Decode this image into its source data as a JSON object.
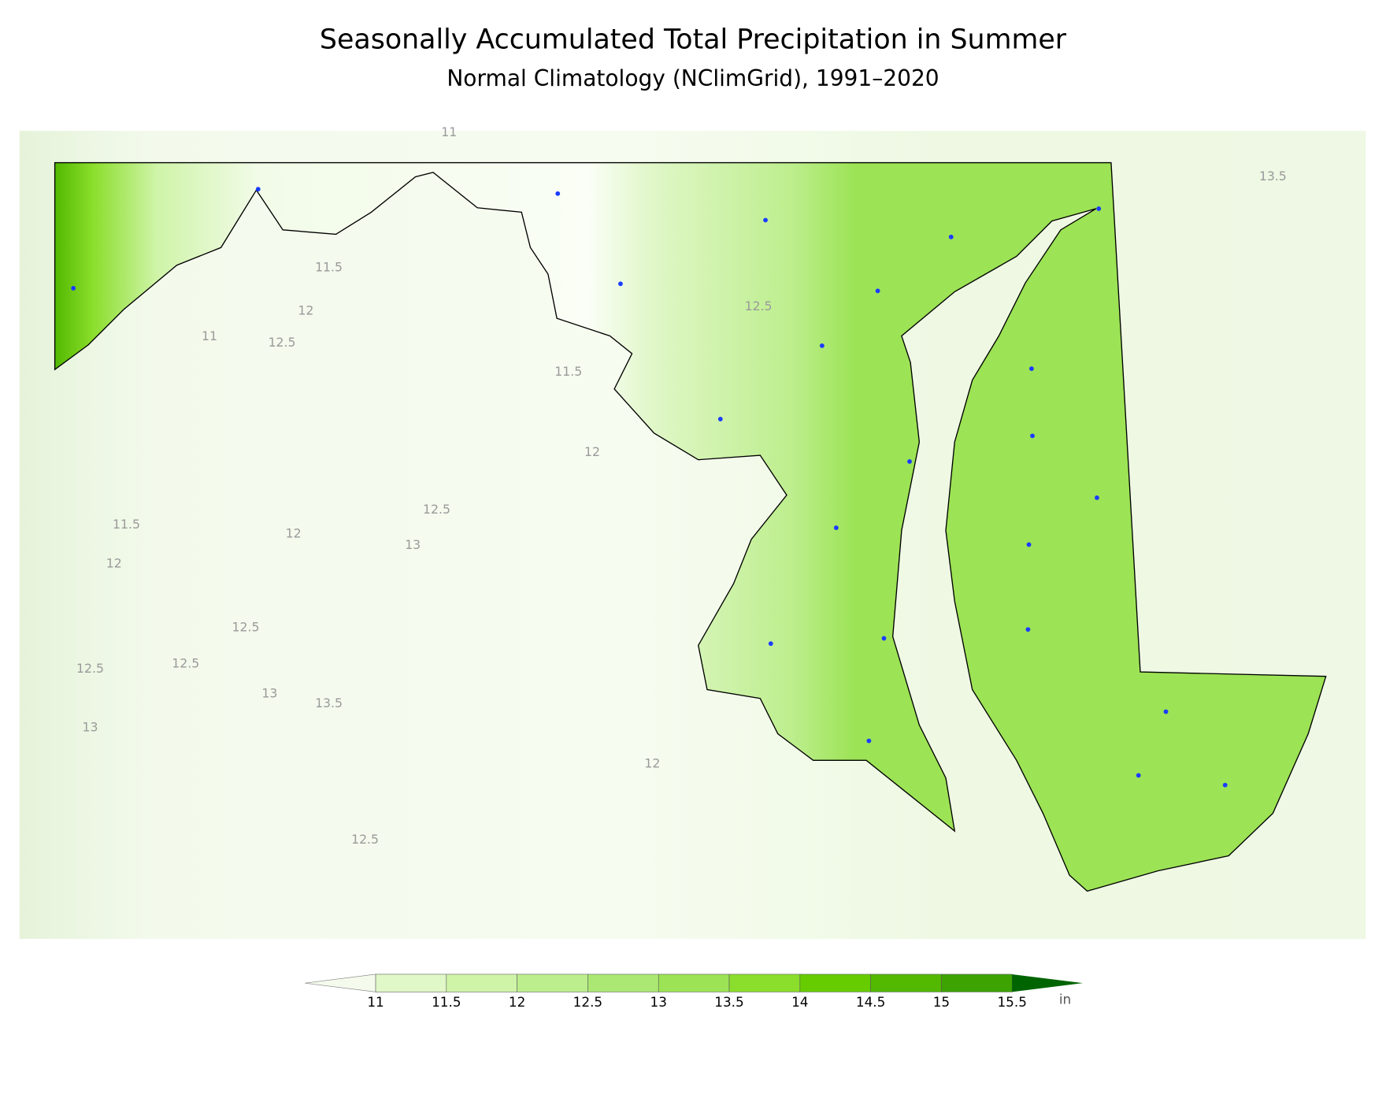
{
  "title": "Seasonally Accumulated Total Precipitation in Summer",
  "subtitle": "Normal Climatology (NClimGrid), 1991–2020",
  "contour_labels": [
    11,
    13.5,
    11.5,
    12,
    12.5,
    11,
    12.5,
    11.5,
    12,
    12.5,
    11.5,
    12,
    13,
    12,
    12.5,
    12.5,
    12.5,
    13,
    13.5,
    13,
    12,
    12.5
  ],
  "colorbar": {
    "levels": [
      11,
      11.5,
      12,
      12.5,
      13,
      13.5,
      14,
      14.5,
      15,
      15.5
    ],
    "colors": [
      "#f4fbec",
      "#e0f7c8",
      "#cff4a8",
      "#bdee8d",
      "#abe873",
      "#9ce355",
      "#8bde2c",
      "#66cc00",
      "#52b800",
      "#3da300",
      "#006400"
    ],
    "unit": "in"
  }
}
